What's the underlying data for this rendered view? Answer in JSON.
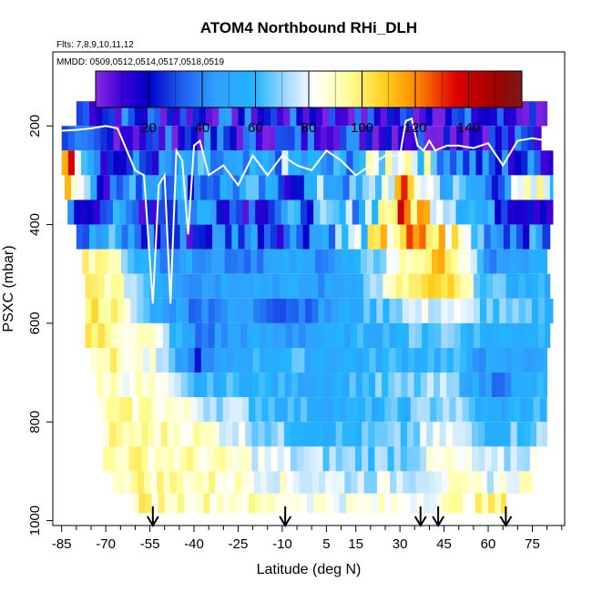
{
  "chart_data": {
    "type": "heatmap",
    "title": "ATOM4 Northbound RHi_DLH",
    "flights_label": "Flts: 7,8,9,10,11,12",
    "dates_label": "MMDD: 0509,0512,0514,0517,0518,0519",
    "xlabel": "Latitude (deg N)",
    "ylabel": "PSXC (mbar)",
    "xlim": [
      -88,
      86
    ],
    "ylim": [
      1010,
      50
    ],
    "x_ticks": [
      -85,
      -70,
      -55,
      -40,
      -25,
      -10,
      5,
      15,
      30,
      45,
      60,
      75
    ],
    "x_tick_labels": [
      "-85",
      "-70",
      "-55",
      "-40",
      "-25",
      "-10",
      "5",
      "15",
      "30",
      "45",
      "60",
      "75"
    ],
    "y_ticks": [
      200,
      400,
      600,
      800,
      1000
    ],
    "y_tick_labels": [
      "200",
      "400",
      "600",
      "800",
      "1000"
    ],
    "colorbar": {
      "range": [
        0,
        160
      ],
      "ticks": [
        20,
        40,
        60,
        80,
        100,
        120,
        140
      ],
      "tick_labels": [
        "20",
        "40",
        "60",
        "80",
        "100",
        "120",
        "140"
      ],
      "stops": [
        {
          "v": 0,
          "color": "#8a2be2"
        },
        {
          "v": 10,
          "color": "#3a00d8"
        },
        {
          "v": 20,
          "color": "#0000c8"
        },
        {
          "v": 32,
          "color": "#1e5cf0"
        },
        {
          "v": 45,
          "color": "#2fa0ff"
        },
        {
          "v": 60,
          "color": "#22b5ff"
        },
        {
          "v": 72,
          "color": "#a9dbff"
        },
        {
          "v": 82,
          "color": "#ffffff"
        },
        {
          "v": 95,
          "color": "#ffff99"
        },
        {
          "v": 108,
          "color": "#ffd21e"
        },
        {
          "v": 120,
          "color": "#ff8c00"
        },
        {
          "v": 135,
          "color": "#e00000"
        },
        {
          "v": 150,
          "color": "#a00000"
        },
        {
          "v": 160,
          "color": "#7a1a1a"
        }
      ]
    },
    "pressure_levels": [
      175,
      225,
      275,
      325,
      375,
      425,
      475,
      525,
      575,
      625,
      675,
      725,
      775,
      825,
      875,
      925,
      965
    ],
    "level_extent": [
      [
        -80,
        80
      ],
      [
        -85,
        78
      ],
      [
        -85,
        82
      ],
      [
        -84,
        82
      ],
      [
        -83,
        82
      ],
      [
        -80,
        81
      ],
      [
        -78,
        80
      ],
      [
        -77,
        81
      ],
      [
        -77,
        82
      ],
      [
        -77,
        81
      ],
      [
        -75,
        80
      ],
      [
        -73,
        80
      ],
      [
        -72,
        80
      ],
      [
        -71,
        80
      ],
      [
        -71,
        77
      ],
      [
        -68,
        75
      ],
      [
        -61,
        66
      ]
    ],
    "rhi_anchor_values": [
      [
        30,
        28,
        25,
        22,
        22,
        20,
        18,
        15,
        20,
        22,
        18,
        15
      ],
      [
        15,
        20,
        18,
        25,
        22,
        20,
        30,
        25,
        22,
        18,
        18,
        20
      ],
      [
        135,
        20,
        30,
        45,
        30,
        55,
        40,
        60,
        100,
        50,
        25,
        30
      ],
      [
        120,
        25,
        60,
        40,
        50,
        30,
        60,
        45,
        110,
        60,
        40,
        80
      ],
      [
        20,
        40,
        25,
        55,
        30,
        40,
        50,
        60,
        120,
        90,
        40,
        30
      ],
      [
        30,
        50,
        30,
        25,
        45,
        35,
        55,
        70,
        110,
        100,
        50,
        40
      ],
      [
        90,
        95,
        45,
        50,
        40,
        50,
        45,
        55,
        90,
        110,
        40,
        50
      ],
      [
        100,
        95,
        60,
        45,
        55,
        50,
        45,
        60,
        95,
        105,
        60,
        55
      ],
      [
        105,
        100,
        55,
        40,
        45,
        35,
        45,
        55,
        75,
        80,
        65,
        60
      ],
      [
        110,
        95,
        85,
        35,
        50,
        45,
        50,
        55,
        60,
        70,
        55,
        60
      ],
      [
        100,
        95,
        80,
        30,
        55,
        60,
        55,
        55,
        60,
        60,
        45,
        50
      ],
      [
        95,
        90,
        85,
        55,
        60,
        55,
        55,
        60,
        65,
        70,
        40,
        55
      ],
      [
        95,
        90,
        92,
        80,
        70,
        60,
        55,
        55,
        60,
        75,
        50,
        60
      ],
      [
        95,
        92,
        92,
        90,
        78,
        65,
        60,
        60,
        65,
        80,
        60,
        70
      ],
      [
        95,
        95,
        92,
        90,
        85,
        75,
        70,
        68,
        70,
        85,
        70,
        80
      ],
      [
        95,
        95,
        94,
        92,
        88,
        82,
        78,
        75,
        78,
        85,
        80,
        90
      ],
      [
        95,
        95,
        94,
        92,
        90,
        88,
        85,
        82,
        85,
        88,
        95,
        100
      ]
    ],
    "tropopause_line": {
      "name": "tropopause (white line)",
      "x": [
        -86,
        -80,
        -75,
        -70,
        -66,
        -60,
        -57,
        -54,
        -52,
        -50,
        -48,
        -46,
        -44,
        -42,
        -40,
        -38,
        -35,
        -30,
        -25,
        -20,
        -15,
        -10,
        -5,
        0,
        5,
        10,
        15,
        20,
        25,
        30,
        32,
        34,
        36,
        38,
        40,
        42,
        44,
        46,
        50,
        55,
        60,
        65,
        70,
        75,
        80
      ],
      "y": [
        210,
        208,
        205,
        200,
        205,
        290,
        300,
        560,
        320,
        300,
        560,
        250,
        270,
        420,
        240,
        230,
        300,
        280,
        320,
        260,
        300,
        260,
        280,
        290,
        250,
        270,
        300,
        280,
        260,
        260,
        190,
        185,
        240,
        250,
        230,
        250,
        245,
        240,
        240,
        245,
        235,
        280,
        230,
        225,
        230
      ]
    },
    "profile_arrows_lat": [
      -54,
      -9,
      37,
      43,
      66
    ]
  }
}
